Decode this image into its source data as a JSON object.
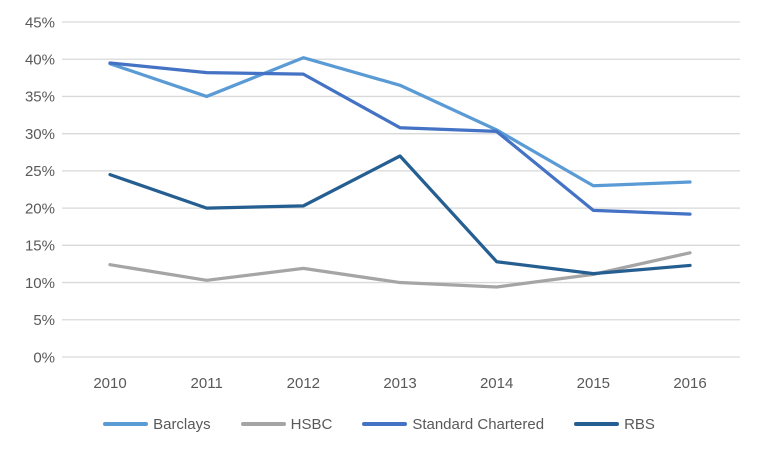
{
  "chart_data": {
    "type": "line",
    "categories": [
      "2010",
      "2011",
      "2012",
      "2013",
      "2014",
      "2015",
      "2016"
    ],
    "series": [
      {
        "name": "Barclays",
        "color": "#5B9BD5",
        "values": [
          39.4,
          35.0,
          40.2,
          36.5,
          30.5,
          23.0,
          23.5
        ]
      },
      {
        "name": "HSBC",
        "color": "#A5A5A5",
        "values": [
          12.4,
          10.3,
          11.9,
          10.0,
          9.4,
          11.1,
          14.0
        ]
      },
      {
        "name": "Standard Chartered",
        "color": "#4472C4",
        "values": [
          39.5,
          38.2,
          38.0,
          30.8,
          30.3,
          19.7,
          19.2
        ]
      },
      {
        "name": "RBS",
        "color": "#255E91",
        "values": [
          24.5,
          20.0,
          20.3,
          27.0,
          12.8,
          11.2,
          12.3
        ]
      }
    ],
    "ylim": [
      0,
      45
    ],
    "ytick_step": 5,
    "yticklabels": [
      "0%",
      "5%",
      "10%",
      "15%",
      "20%",
      "25%",
      "30%",
      "35%",
      "40%",
      "45%"
    ],
    "xlabel": "",
    "ylabel": "",
    "grid": "horizontal",
    "legend_position": "bottom",
    "axis_text_color": "#595959",
    "gridline_color": "#D9D9D9",
    "line_width": 3.25
  }
}
